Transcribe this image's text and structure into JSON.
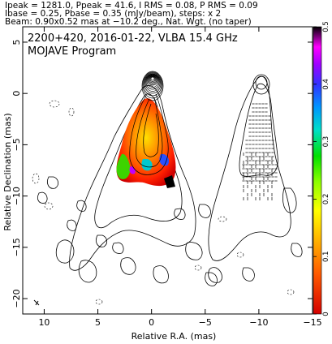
{
  "header": {
    "line1": "Ipeak = 1281.0, Ppeak = 41.6, I RMS = 0.08, P RMS = 0.09",
    "line2": "Ibase = 0.25, Pbase = 0.35 (mJy/beam), steps: x 2",
    "line3": "Beam: 0.90x0.52 mas at −10.2 deg., Nat. Wgt. (no taper)"
  },
  "plot": {
    "title": "2200+420, 2016-01-22, VLBA 15.4 GHz",
    "subtitle": "MOJAVE Program"
  },
  "chart_data": {
    "type": "heatmap",
    "xlabel": "Relative R.A. (mas)",
    "ylabel": "Relative Declination (mas)",
    "xlim": [
      12,
      -15
    ],
    "ylim": [
      -21.5,
      6.5
    ],
    "xticks": [
      10,
      5,
      0,
      -5,
      -10,
      -15
    ],
    "yticks": [
      5,
      0,
      -5,
      -10,
      -15,
      -20
    ],
    "colorbar": {
      "range": [
        0,
        0.5
      ],
      "ticks": [
        0,
        0.1,
        0.2,
        0.3,
        0.4,
        0.5
      ],
      "colormap": "rainbow (red at 0 to magenta, then black at 0.5)"
    },
    "left_panel": "Stokes I contours with fractional polarization color overlay",
    "right_panel": "Stokes I contours with EVPA polarization ticks"
  }
}
